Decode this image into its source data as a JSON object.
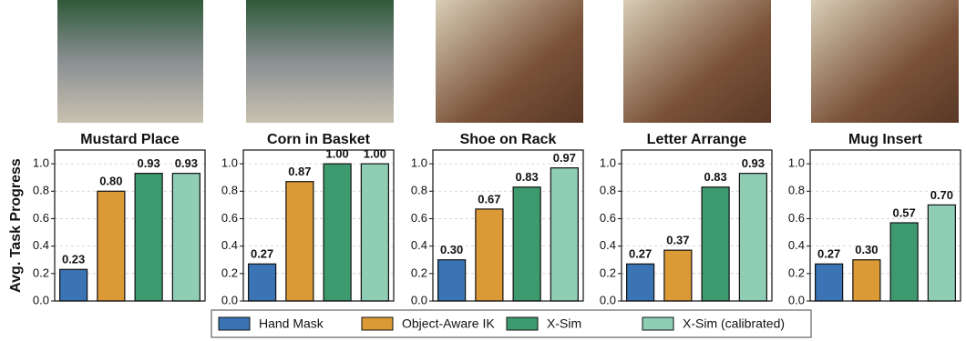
{
  "chart_data": [
    {
      "type": "bar",
      "title": "Mustard Place",
      "ylabel": "Avg. Task Progress",
      "values": [
        0.23,
        0.8,
        0.93,
        0.93
      ],
      "value_labels": [
        "0.23",
        "0.80",
        "0.93",
        "0.93"
      ],
      "ylim": [
        0,
        1.1
      ],
      "yticks": [
        {
          "value": 0,
          "label": "0.0"
        },
        0.2,
        0.4,
        0.6,
        0.8,
        {
          "value": 1,
          "label": "1.0"
        }
      ],
      "grid": true
    },
    {
      "type": "bar",
      "title": "Corn in Basket",
      "values": [
        0.27,
        0.87,
        1.0,
        1.0
      ],
      "value_labels": [
        "0.27",
        "0.87",
        "1.00",
        "1.00"
      ],
      "ylim": [
        0,
        1.1
      ],
      "yticks": [
        {
          "value": 0,
          "label": "0.0"
        },
        0.2,
        0.4,
        0.6,
        0.8,
        {
          "value": 1,
          "label": "1.0"
        }
      ],
      "grid": true
    },
    {
      "type": "bar",
      "title": "Shoe on Rack",
      "values": [
        0.3,
        0.67,
        0.83,
        0.97
      ],
      "value_labels": [
        "0.30",
        "0.67",
        "0.83",
        "0.97"
      ],
      "ylim": [
        0,
        1.1
      ],
      "yticks": [
        {
          "value": 0,
          "label": "0.0"
        },
        0.2,
        0.4,
        0.6,
        0.8,
        {
          "value": 1,
          "label": "1.0"
        }
      ],
      "grid": true
    },
    {
      "type": "bar",
      "title": "Letter Arrange",
      "values": [
        0.27,
        0.37,
        0.83,
        0.93
      ],
      "value_labels": [
        "0.27",
        "0.37",
        "0.83",
        "0.93"
      ],
      "ylim": [
        0,
        1.1
      ],
      "yticks": [
        {
          "value": 0,
          "label": "0.0"
        },
        0.2,
        0.4,
        0.6,
        0.8,
        {
          "value": 1,
          "label": "1.0"
        }
      ],
      "grid": true
    },
    {
      "type": "bar",
      "title": "Mug Insert",
      "values": [
        0.27,
        0.3,
        0.57,
        0.7
      ],
      "value_labels": [
        "0.27",
        "0.30",
        "0.57",
        "0.70"
      ],
      "ylim": [
        0,
        1.1
      ],
      "yticks": [
        {
          "value": 0,
          "label": "0.0"
        },
        0.2,
        0.4,
        0.6,
        0.8,
        {
          "value": 1,
          "label": "1.0"
        }
      ],
      "grid": true
    }
  ],
  "legend": {
    "series": [
      {
        "name": "Hand Mask",
        "color": "#3a74b4"
      },
      {
        "name": "Object-Aware IK",
        "color": "#dc9a36"
      },
      {
        "name": "X-Sim",
        "color": "#3d9a6e"
      },
      {
        "name": "X-Sim (calibrated)",
        "color": "#8fcdb5"
      }
    ]
  }
}
